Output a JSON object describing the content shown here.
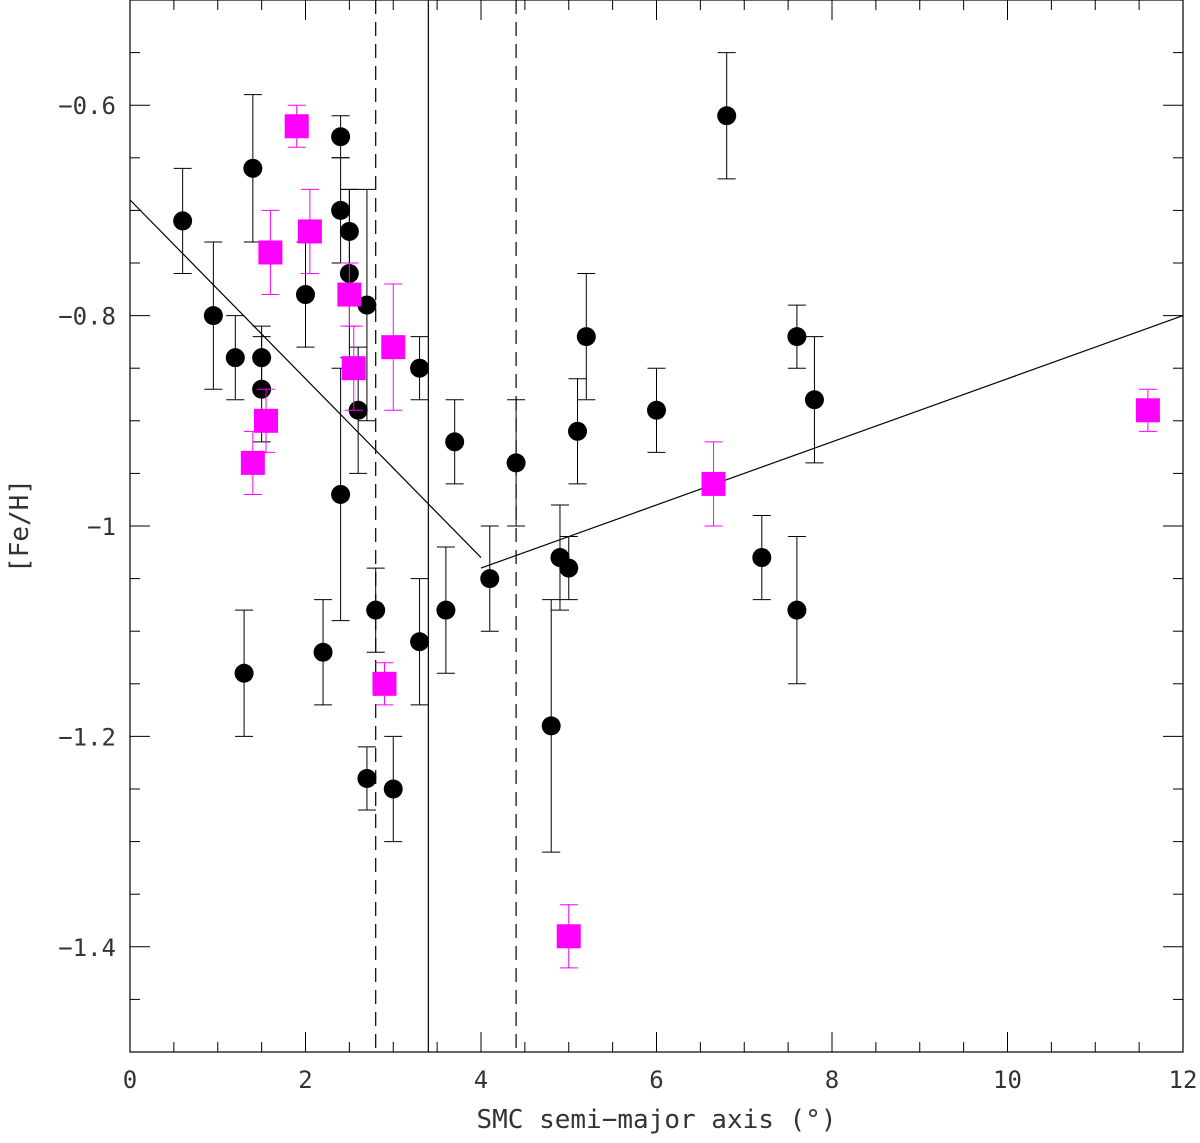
{
  "chart_data": {
    "type": "scatter",
    "xlabel": "SMC semi−major axis (°)",
    "ylabel": "[Fe/H]",
    "xlim": [
      0,
      12
    ],
    "ylim": [
      -1.5,
      -0.5
    ],
    "x_ticks": [
      0,
      2,
      4,
      6,
      8,
      10,
      12
    ],
    "x_tick_labels": [
      "0",
      "2",
      "4",
      "6",
      "8",
      "10",
      "12"
    ],
    "y_ticks": [
      -1.4,
      -1.2,
      -1.0,
      -0.8,
      -0.6
    ],
    "y_tick_labels": [
      "−1.4",
      "−1.2",
      "−1",
      "−0.8",
      "−0.6"
    ],
    "grid": false,
    "colors": {
      "series_circle": "#000000",
      "series_square": "#ff00ff",
      "lines": "#000000"
    },
    "series": [
      {
        "marker": "circle",
        "points": [
          {
            "x": 0.6,
            "y": -0.71,
            "err": 0.05
          },
          {
            "x": 0.95,
            "y": -0.8,
            "err": 0.07
          },
          {
            "x": 1.2,
            "y": -0.84,
            "err": 0.04
          },
          {
            "x": 1.3,
            "y": -1.14,
            "err": 0.06
          },
          {
            "x": 1.4,
            "y": -0.66,
            "err": 0.07
          },
          {
            "x": 1.5,
            "y": -0.84,
            "err": 0.03
          },
          {
            "x": 1.5,
            "y": -0.87,
            "err": 0.05
          },
          {
            "x": 2.0,
            "y": -0.78,
            "err": 0.05
          },
          {
            "x": 2.2,
            "y": -1.12,
            "err": 0.05
          },
          {
            "x": 2.4,
            "y": -0.63,
            "err": 0.02
          },
          {
            "x": 2.4,
            "y": -0.7,
            "err": 0.05
          },
          {
            "x": 2.4,
            "y": -0.97,
            "err": 0.12
          },
          {
            "x": 2.5,
            "y": -0.72,
            "err": 0.04
          },
          {
            "x": 2.5,
            "y": -0.76,
            "err": 0.08
          },
          {
            "x": 2.6,
            "y": -0.89,
            "err": 0.06
          },
          {
            "x": 2.7,
            "y": -0.79,
            "err": 0.11
          },
          {
            "x": 2.7,
            "y": -1.24,
            "err": 0.03
          },
          {
            "x": 2.8,
            "y": -1.08,
            "err": 0.04
          },
          {
            "x": 3.0,
            "y": -1.25,
            "err": 0.05
          },
          {
            "x": 3.3,
            "y": -0.85,
            "err": 0.03
          },
          {
            "x": 3.3,
            "y": -1.11,
            "err": 0.06
          },
          {
            "x": 3.6,
            "y": -1.08,
            "err": 0.06
          },
          {
            "x": 3.7,
            "y": -0.92,
            "err": 0.04
          },
          {
            "x": 4.1,
            "y": -1.05,
            "err": 0.05
          },
          {
            "x": 4.4,
            "y": -0.94,
            "err": 0.06
          },
          {
            "x": 4.8,
            "y": -1.19,
            "err": 0.12
          },
          {
            "x": 4.9,
            "y": -1.03,
            "err": 0.05
          },
          {
            "x": 5.0,
            "y": -1.04,
            "err": 0.03
          },
          {
            "x": 5.1,
            "y": -0.91,
            "err": 0.05
          },
          {
            "x": 5.2,
            "y": -0.82,
            "err": 0.06
          },
          {
            "x": 6.0,
            "y": -0.89,
            "err": 0.04
          },
          {
            "x": 6.8,
            "y": -0.61,
            "err": 0.06
          },
          {
            "x": 7.2,
            "y": -1.03,
            "err": 0.04
          },
          {
            "x": 7.6,
            "y": -0.82,
            "err": 0.03
          },
          {
            "x": 7.6,
            "y": -1.08,
            "err": 0.07
          },
          {
            "x": 7.8,
            "y": -0.88,
            "err": 0.06
          }
        ]
      },
      {
        "marker": "square",
        "points": [
          {
            "x": 1.4,
            "y": -0.94,
            "err": 0.03
          },
          {
            "x": 1.55,
            "y": -0.9,
            "err": 0.03
          },
          {
            "x": 1.6,
            "y": -0.74,
            "err": 0.04
          },
          {
            "x": 1.9,
            "y": -0.62,
            "err": 0.02
          },
          {
            "x": 2.05,
            "y": -0.72,
            "err": 0.04
          },
          {
            "x": 2.5,
            "y": -0.78,
            "err": 0.03
          },
          {
            "x": 2.55,
            "y": -0.85,
            "err": 0.04
          },
          {
            "x": 2.9,
            "y": -1.15,
            "err": 0.02
          },
          {
            "x": 3.0,
            "y": -0.83,
            "err": 0.06
          },
          {
            "x": 5.0,
            "y": -1.39,
            "err": 0.03
          },
          {
            "x": 6.65,
            "y": -0.96,
            "err": 0.04
          },
          {
            "x": 11.6,
            "y": -0.89,
            "err": 0.02
          }
        ]
      }
    ],
    "fit_lines": [
      {
        "x": [
          0,
          4.0
        ],
        "y": [
          -0.69,
          -1.03
        ]
      },
      {
        "x": [
          4.0,
          12.0
        ],
        "y": [
          -1.04,
          -0.8
        ]
      }
    ],
    "reference_lines": [
      {
        "x": 3.4,
        "style": "solid"
      },
      {
        "x": 2.8,
        "style": "dashed"
      },
      {
        "x": 4.4,
        "style": "dashed"
      }
    ]
  }
}
